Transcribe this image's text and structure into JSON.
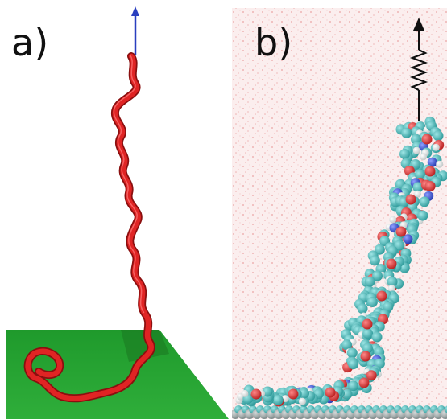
{
  "figure": {
    "panel_a": {
      "label": "a)"
    },
    "panel_b": {
      "label": "b)"
    }
  },
  "colors": {
    "chain": "#d81e1e",
    "chain_dark": "#8a0f0f",
    "surface": "#33a833",
    "pull_arrow": "#2a3fbf",
    "carbon": "#3fb7b7",
    "oxygen": "#d42b2b",
    "nitrogen": "#2b49c9",
    "hydrogen": "#e8ecec",
    "water": "#f1c9c9"
  },
  "icons": [
    "pull-arrow-icon",
    "spring-icon"
  ]
}
